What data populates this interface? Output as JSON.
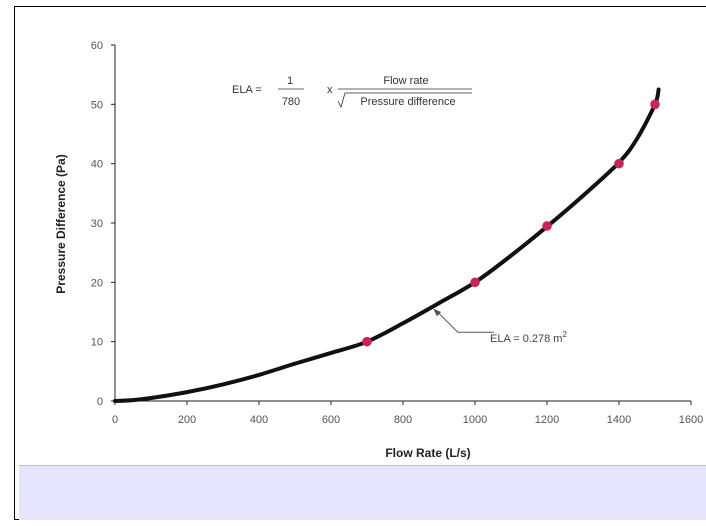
{
  "chart_data": {
    "type": "line",
    "xlabel": "Flow Rate (L/s)",
    "ylabel": "Pressure Difference (Pa)",
    "xlim": [
      0,
      1600
    ],
    "ylim": [
      0,
      60
    ],
    "x_ticks": [
      0,
      200,
      400,
      600,
      800,
      1000,
      1200,
      1400,
      1600
    ],
    "x_tick_labels": [
      "0",
      "200",
      "400",
      "600",
      "800",
      "1000",
      "1200",
      "1400",
      "1600"
    ],
    "y_ticks": [
      0,
      10,
      20,
      30,
      40,
      50,
      60
    ],
    "y_tick_labels": [
      "0",
      "10",
      "20",
      "30",
      "40",
      "50",
      "60"
    ],
    "grid": false,
    "series": [
      {
        "color": "#111111",
        "x": [
          0,
          50,
          100,
          200,
          300,
          400,
          500,
          600,
          700,
          800,
          900,
          1000,
          1100,
          1200,
          1300,
          1400,
          1450,
          1500,
          1510
        ],
        "y": [
          0,
          0.15,
          0.5,
          1.5,
          2.8,
          4.4,
          6.3,
          8.1,
          10,
          13.1,
          16.5,
          20,
          24.5,
          29.4,
          34.6,
          40.2,
          44.2,
          50,
          52.5
        ]
      }
    ],
    "points": {
      "color": "#c8265a",
      "x": [
        700,
        1000,
        1200,
        1400,
        1500
      ],
      "y": [
        10,
        20,
        29.5,
        40,
        50
      ]
    },
    "formula": {
      "lhs": "ELA =",
      "numerator1": "1",
      "denominator1": "780",
      "times": "x",
      "numerator2": "Flow rate",
      "denominator2": "Pressure difference"
    },
    "annotation": {
      "text": "ELA = 0.278 m",
      "superscript": "2",
      "target_x": 880,
      "target_y": 15.8
    }
  },
  "colors": {
    "caption_band": "#e5e6fd",
    "curve": "#111111",
    "markers": "#c8265a"
  }
}
